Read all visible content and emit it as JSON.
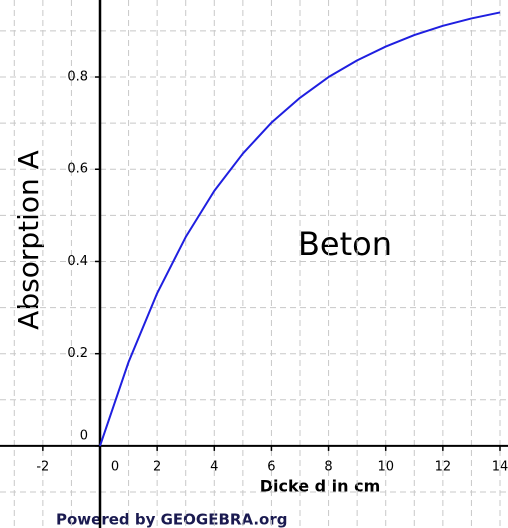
{
  "chart_data": {
    "type": "line",
    "x_label": "Dicke d in cm",
    "y_label": "Absorption  A",
    "annotation": "Beton",
    "footer": "Powered by GEOGEBRA.org",
    "series": [
      {
        "name": "Beton",
        "color": "#1f1fe0",
        "x": [
          0,
          1,
          2,
          3,
          4,
          5,
          6,
          7,
          8,
          9,
          10,
          11,
          12,
          13,
          14
        ],
        "values": [
          0,
          0.182,
          0.331,
          0.453,
          0.553,
          0.634,
          0.701,
          0.755,
          0.8,
          0.836,
          0.866,
          0.891,
          0.911,
          0.927,
          0.94
        ]
      }
    ],
    "xlim": [
      -3.5,
      14.28
    ],
    "ylim": [
      -0.178,
      0.967
    ],
    "xticks": [
      -2,
      0,
      2,
      4,
      6,
      8,
      10,
      12,
      14
    ],
    "yticks": [
      0,
      0.2,
      0.4,
      0.6,
      0.8
    ],
    "xgrid": [
      -3,
      -2,
      -1,
      1,
      2,
      3,
      4,
      5,
      6,
      7,
      8,
      9,
      10,
      11,
      12,
      13,
      14
    ],
    "ygrid": [
      -0.1,
      0.1,
      0.2,
      0.3,
      0.4,
      0.5,
      0.6,
      0.7,
      0.8,
      0.9
    ],
    "grid": true
  }
}
